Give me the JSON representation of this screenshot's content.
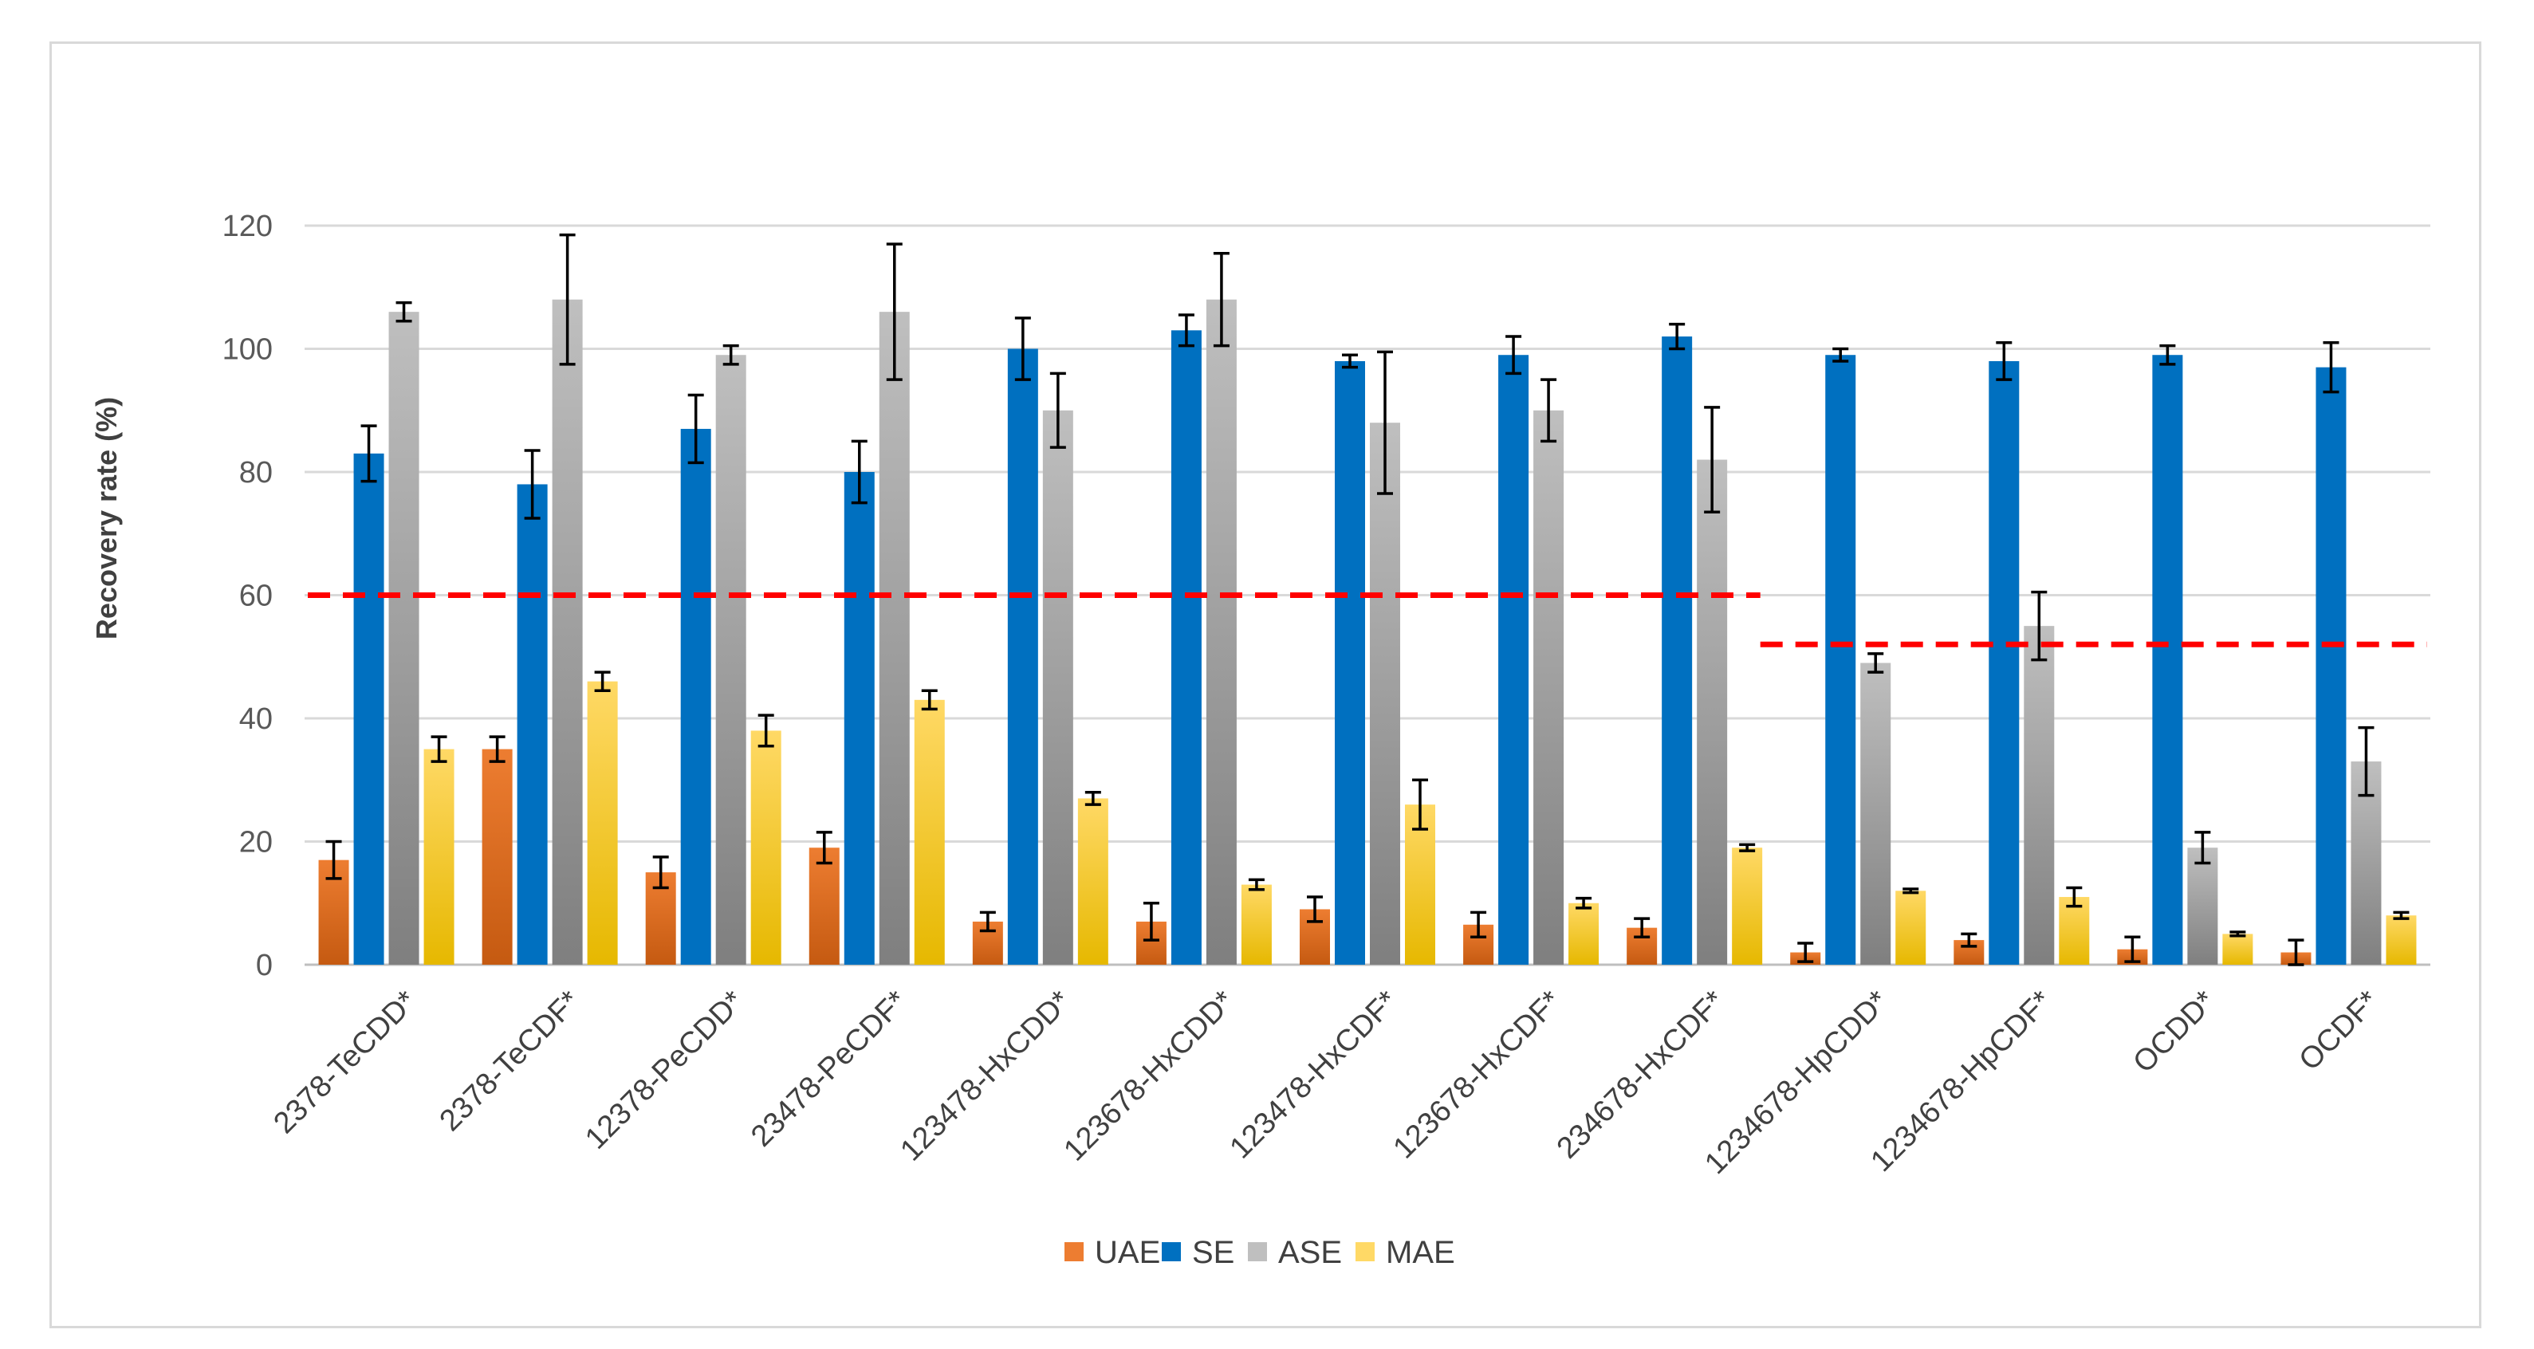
{
  "chart_data": {
    "type": "bar",
    "title": "",
    "xlabel": "",
    "ylabel": "Recovery rate (%)",
    "ylim": [
      0,
      120
    ],
    "yticks": [
      0,
      20,
      40,
      60,
      80,
      100,
      120
    ],
    "grid": true,
    "legend_position": "bottom",
    "categories": [
      "2378-TeCDD*",
      "2378-TeCDF*",
      "12378-PeCDD*",
      "23478-PeCDF*",
      "123478-HxCDD*",
      "123678-HxCDD*",
      "123478-HxCDF*",
      "123678-HxCDF*",
      "234678-HxCDF*",
      "1234678-HpCDD*",
      "1234678-HpCDF*",
      "OCDD*",
      "OCDF*"
    ],
    "series": [
      {
        "name": "UAE",
        "color": "#ED7D31",
        "color_dark": "#C55A11",
        "values": [
          17,
          35,
          15,
          19,
          7,
          7,
          9,
          6.5,
          6,
          2,
          4,
          2.5,
          2
        ],
        "errors": [
          3,
          2,
          2.5,
          2.5,
          1.5,
          3,
          2,
          2,
          1.5,
          1.5,
          1,
          2,
          2
        ]
      },
      {
        "name": "SE",
        "color": "#0070C0",
        "color_dark": "#0070C0",
        "values": [
          83,
          78,
          87,
          80,
          100,
          103,
          98,
          99,
          102,
          99,
          98,
          99,
          97
        ],
        "errors": [
          4.5,
          5.5,
          5.5,
          5,
          5,
          2.5,
          1,
          3,
          2,
          1,
          3,
          1.5,
          4
        ]
      },
      {
        "name": "ASE",
        "color": "#BFBFBF",
        "color_dark": "#7F7F7F",
        "values": [
          106,
          108,
          99,
          106,
          90,
          108,
          88,
          90,
          82,
          49,
          55,
          19,
          33
        ],
        "errors": [
          1.5,
          10.5,
          1.5,
          11,
          6,
          7.5,
          11.5,
          5,
          8.5,
          1.5,
          5.5,
          2.5,
          5.5
        ]
      },
      {
        "name": "MAE",
        "color": "#FFD966",
        "color_dark": "#E6B800",
        "values": [
          35,
          46,
          38,
          43,
          27,
          13,
          26,
          10,
          19,
          12,
          11,
          5,
          8
        ],
        "errors": [
          2,
          1.5,
          2.5,
          1.5,
          1,
          0.8,
          4,
          0.8,
          0.5,
          0.3,
          1.5,
          0.3,
          0.5
        ]
      }
    ],
    "reference_lines": [
      {
        "value": 60,
        "from_category": 0,
        "to_category": 8,
        "color": "#FF0000",
        "style": "dashed"
      },
      {
        "value": 52,
        "from_category": 9,
        "to_category": 12,
        "color": "#FF0000",
        "style": "dashed"
      }
    ]
  }
}
